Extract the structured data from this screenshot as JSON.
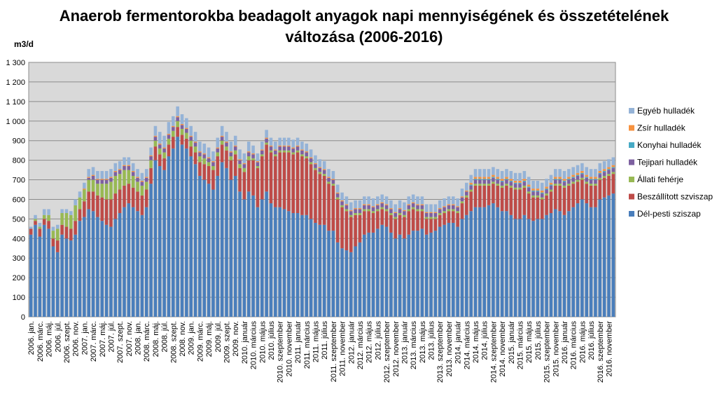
{
  "chart_data": {
    "type": "bar",
    "stacked": true,
    "title": "Anaerob fermentorokba beadagolt anyagok  napi mennyiségének és összetételének\nváltozása (2006-2016)",
    "ylabel": "m3/d",
    "ylim": [
      0,
      1300
    ],
    "y_ticks": [
      "0",
      "100",
      "200",
      "300",
      "400",
      "500",
      "600",
      "700",
      "800",
      "900",
      "1 000",
      "1 100",
      "1 200",
      "1 300"
    ],
    "grid": true,
    "legend_position": "right",
    "categories_count": 132,
    "x_tick_labels": [
      "2006. jan.",
      "2006. márc.",
      "2006. máj.",
      "2006. júl.",
      "2006. szept.",
      "2006. nov.",
      "2007. jan.",
      "2007. márc.",
      "2007. máj.",
      "2007. júl.",
      "2007. szept.",
      "2007. nov.",
      "2008. jan.",
      "2008. márc.",
      "2008. máj.",
      "2008. júl.",
      "2008. szept.",
      "2008. nov.",
      "2009. jan.",
      "2009. márc.",
      "2009. máj.",
      "2009. júl.",
      "2009. szept.",
      "2009. nov.",
      "2010. január",
      "2010. március",
      "2010. május",
      "2010. július",
      "2010. szeptember",
      "2010. november",
      "2011. január",
      "2011. március",
      "2011. május",
      "2011. július",
      "2011. szeptember",
      "2011. november",
      "2012. január",
      "2012. március",
      "2012. május",
      "2012. július",
      "2012. szeptember",
      "2012. november",
      "2013. január",
      "2013. március",
      "2013. május",
      "2013. július",
      "2013. szeptember",
      "2013. november",
      "2014. január",
      "2014. március",
      "2014. május",
      "2014. július",
      "2014. szeptember",
      "2014. november",
      "2015. január",
      "2015. március",
      "2015. május",
      "2015. július",
      "2015. szeptember",
      "2015. november",
      "2016. január",
      "2016. március",
      "2016. május",
      "2016. július",
      "2016. szeptember",
      "2016. november"
    ],
    "legend_order": [
      "Egyéb hulladék",
      "Zsír hulladék",
      "Konyhai hulladék",
      "Tejipari hulladék",
      "Állati fehérje",
      "Beszállított szviszap",
      "Dél-pesti sziszap"
    ],
    "series": [
      {
        "name": "Dél-pesti sziszap",
        "color": "#4A7EBB",
        "values": [
          420,
          470,
          410,
          470,
          450,
          360,
          330,
          420,
          400,
          390,
          420,
          490,
          510,
          550,
          540,
          510,
          490,
          470,
          460,
          500,
          530,
          560,
          580,
          560,
          540,
          520,
          560,
          680,
          800,
          770,
          750,
          820,
          860,
          920,
          880,
          860,
          820,
          780,
          720,
          700,
          680,
          650,
          720,
          790,
          760,
          700,
          720,
          640,
          600,
          640,
          620,
          560,
          600,
          640,
          580,
          560,
          560,
          550,
          540,
          530,
          530,
          520,
          520,
          500,
          480,
          470,
          470,
          440,
          440,
          380,
          350,
          340,
          330,
          360,
          380,
          420,
          430,
          430,
          450,
          470,
          460,
          430,
          400,
          420,
          400,
          420,
          440,
          440,
          450,
          420,
          430,
          440,
          460,
          470,
          480,
          480,
          460,
          500,
          520,
          540,
          560,
          560,
          560,
          570,
          580,
          560,
          540,
          540,
          520,
          500,
          500,
          520,
          500,
          490,
          500,
          500,
          520,
          530,
          550,
          540,
          520,
          540,
          560,
          580,
          600,
          580,
          560,
          560,
          600,
          610,
          620,
          630
        ]
      },
      {
        "name": "Beszállított szviszap",
        "color": "#BE4B48",
        "values": [
          30,
          20,
          40,
          30,
          40,
          40,
          60,
          50,
          60,
          60,
          70,
          60,
          80,
          90,
          100,
          110,
          120,
          130,
          140,
          130,
          120,
          110,
          100,
          100,
          100,
          100,
          90,
          80,
          70,
          60,
          60,
          60,
          60,
          50,
          50,
          50,
          50,
          60,
          70,
          80,
          90,
          100,
          100,
          90,
          90,
          100,
          110,
          120,
          140,
          160,
          180,
          200,
          220,
          240,
          260,
          260,
          280,
          290,
          300,
          300,
          310,
          300,
          290,
          280,
          270,
          260,
          250,
          240,
          230,
          220,
          210,
          200,
          180,
          160,
          140,
          120,
          110,
          100,
          90,
          80,
          80,
          90,
          100,
          100,
          110,
          120,
          110,
          100,
          90,
          80,
          70,
          60,
          60,
          60,
          60,
          60,
          70,
          80,
          90,
          100,
          110,
          110,
          110,
          100,
          100,
          110,
          120,
          130,
          140,
          150,
          150,
          140,
          130,
          120,
          110,
          100,
          100,
          110,
          120,
          130,
          140,
          130,
          120,
          110,
          100,
          100,
          110,
          110,
          100,
          100,
          100,
          100
        ]
      },
      {
        "name": "Állati fehérje",
        "color": "#98B954",
        "values": [
          0,
          10,
          10,
          20,
          30,
          40,
          60,
          60,
          70,
          70,
          80,
          60,
          60,
          60,
          60,
          60,
          70,
          80,
          90,
          90,
          80,
          80,
          70,
          60,
          50,
          50,
          40,
          40,
          30,
          30,
          30,
          30,
          30,
          30,
          30,
          30,
          30,
          30,
          30,
          30,
          20,
          20,
          20,
          20,
          20,
          20,
          20,
          20,
          20,
          20,
          10,
          10,
          10,
          10,
          10,
          10,
          10,
          10,
          10,
          10,
          10,
          10,
          10,
          10,
          10,
          10,
          10,
          10,
          10,
          10,
          10,
          10,
          10,
          10,
          10,
          10,
          10,
          10,
          10,
          10,
          10,
          10,
          10,
          10,
          10,
          10,
          10,
          10,
          10,
          10,
          10,
          10,
          10,
          10,
          10,
          10,
          10,
          10,
          10,
          10,
          10,
          10,
          10,
          10,
          10,
          10,
          10,
          10,
          10,
          10,
          10,
          10,
          10,
          10,
          10,
          10,
          10,
          10,
          10,
          10,
          10,
          10,
          10,
          10,
          10,
          10,
          10,
          10,
          10,
          10,
          10,
          10
        ]
      },
      {
        "name": "Tejipari hulladék",
        "color": "#7D60A0",
        "values": [
          0,
          0,
          0,
          0,
          0,
          0,
          0,
          0,
          0,
          0,
          0,
          0,
          0,
          10,
          20,
          20,
          20,
          20,
          20,
          20,
          20,
          20,
          20,
          20,
          20,
          20,
          20,
          20,
          20,
          20,
          20,
          20,
          20,
          20,
          20,
          20,
          20,
          20,
          20,
          20,
          20,
          20,
          20,
          20,
          20,
          20,
          20,
          20,
          20,
          20,
          20,
          20,
          20,
          20,
          20,
          20,
          20,
          20,
          20,
          20,
          20,
          20,
          20,
          20,
          20,
          20,
          20,
          20,
          20,
          20,
          20,
          20,
          20,
          20,
          20,
          20,
          20,
          20,
          20,
          20,
          20,
          20,
          20,
          20,
          20,
          20,
          20,
          20,
          20,
          20,
          20,
          20,
          20,
          20,
          20,
          20,
          20,
          20,
          20,
          20,
          20,
          20,
          20,
          20,
          20,
          20,
          20,
          20,
          20,
          20,
          20,
          20,
          20,
          20,
          20,
          20,
          20,
          20,
          20,
          20,
          20,
          20,
          20,
          20,
          20,
          20,
          20,
          20,
          20,
          20,
          20,
          20
        ]
      },
      {
        "name": "Konyhai hulladék",
        "color": "#46AAC5",
        "values": [
          0,
          0,
          0,
          0,
          0,
          0,
          0,
          0,
          0,
          0,
          0,
          0,
          0,
          0,
          0,
          0,
          0,
          0,
          0,
          0,
          0,
          0,
          0,
          0,
          0,
          0,
          0,
          0,
          0,
          0,
          0,
          0,
          0,
          0,
          0,
          0,
          0,
          0,
          0,
          0,
          0,
          0,
          0,
          0,
          0,
          0,
          0,
          0,
          0,
          0,
          0,
          0,
          0,
          0,
          0,
          0,
          0,
          0,
          0,
          0,
          0,
          0,
          0,
          0,
          0,
          0,
          0,
          0,
          0,
          0,
          0,
          0,
          0,
          0,
          0,
          0,
          0,
          0,
          0,
          0,
          0,
          0,
          0,
          0,
          0,
          0,
          0,
          0,
          0,
          0,
          0,
          0,
          0,
          0,
          0,
          0,
          0,
          0,
          0,
          5,
          5,
          5,
          5,
          5,
          5,
          5,
          5,
          5,
          5,
          5,
          5,
          5,
          5,
          5,
          5,
          5,
          5,
          5,
          5,
          5,
          5,
          5,
          5,
          5,
          5,
          5,
          5,
          5,
          5,
          5,
          5,
          5
        ]
      },
      {
        "name": "Zsír hulladék",
        "color": "#F69240",
        "values": [
          0,
          0,
          0,
          0,
          0,
          0,
          0,
          0,
          0,
          0,
          0,
          0,
          5,
          5,
          5,
          5,
          5,
          5,
          5,
          5,
          5,
          5,
          5,
          5,
          5,
          5,
          5,
          5,
          5,
          5,
          5,
          5,
          5,
          5,
          5,
          5,
          5,
          5,
          5,
          5,
          5,
          5,
          5,
          5,
          5,
          5,
          5,
          5,
          5,
          5,
          5,
          5,
          5,
          5,
          5,
          5,
          5,
          5,
          5,
          5,
          5,
          5,
          5,
          5,
          5,
          5,
          5,
          5,
          5,
          5,
          5,
          5,
          5,
          5,
          5,
          5,
          5,
          5,
          5,
          5,
          5,
          5,
          5,
          5,
          5,
          5,
          5,
          5,
          5,
          5,
          5,
          5,
          5,
          5,
          5,
          5,
          5,
          5,
          5,
          10,
          10,
          10,
          10,
          10,
          10,
          10,
          10,
          10,
          10,
          10,
          10,
          10,
          10,
          10,
          10,
          10,
          10,
          10,
          10,
          10,
          10,
          10,
          10,
          10,
          10,
          10,
          10,
          10,
          10,
          10,
          10,
          10
        ]
      },
      {
        "name": "Egyéb hulladék",
        "color": "#95B3D7",
        "values": [
          10,
          20,
          20,
          30,
          30,
          20,
          20,
          20,
          20,
          20,
          30,
          30,
          30,
          40,
          40,
          40,
          40,
          40,
          40,
          40,
          40,
          40,
          40,
          40,
          40,
          40,
          40,
          40,
          50,
          60,
          60,
          60,
          50,
          50,
          50,
          50,
          50,
          50,
          50,
          50,
          50,
          50,
          50,
          50,
          50,
          50,
          50,
          50,
          50,
          50,
          40,
          40,
          40,
          40,
          40,
          40,
          40,
          40,
          40,
          40,
          40,
          40,
          40,
          40,
          40,
          40,
          40,
          40,
          40,
          40,
          40,
          40,
          40,
          40,
          40,
          40,
          40,
          40,
          40,
          40,
          40,
          40,
          40,
          40,
          40,
          40,
          40,
          40,
          40,
          40,
          40,
          40,
          40,
          40,
          40,
          40,
          40,
          40,
          40,
          40,
          40,
          40,
          40,
          40,
          40,
          40,
          40,
          40,
          40,
          40,
          40,
          40,
          40,
          40,
          40,
          40,
          40,
          40,
          40,
          40,
          40,
          40,
          40,
          40,
          40,
          40,
          40,
          40,
          40,
          40,
          40,
          40
        ]
      }
    ]
  }
}
